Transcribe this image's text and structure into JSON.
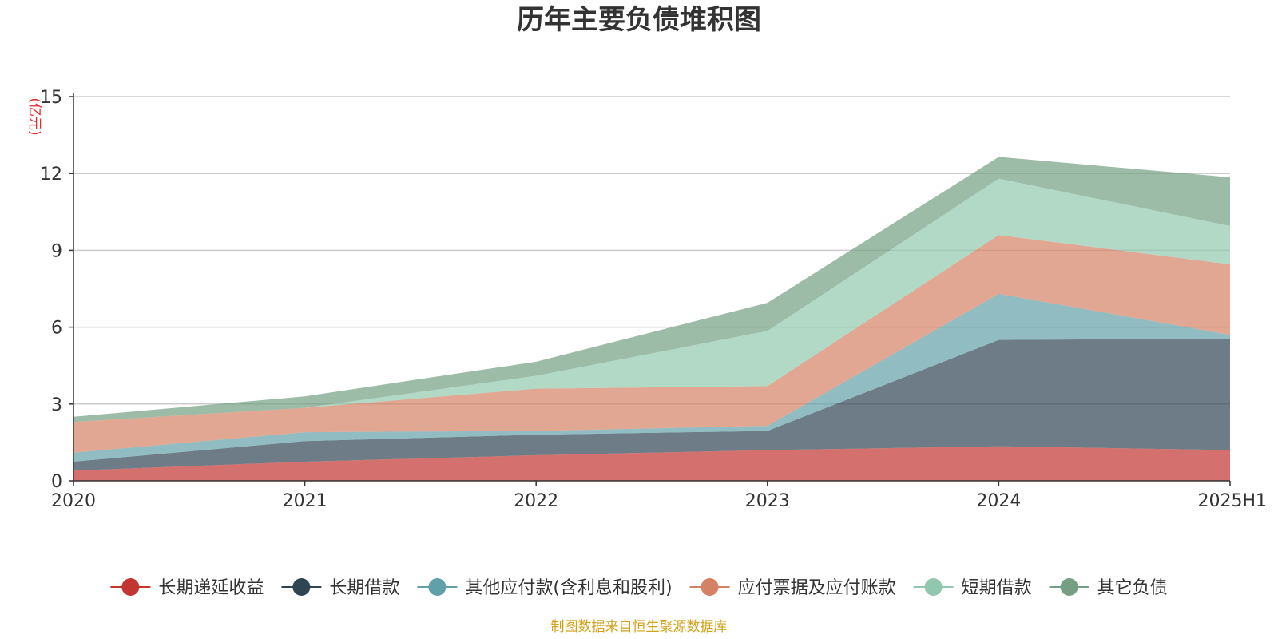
{
  "chart_data": {
    "type": "area",
    "stacked": true,
    "title": "历年主要负债堆积图",
    "unit_label": "(亿元)",
    "categories": [
      "2020",
      "2021",
      "2022",
      "2023",
      "2024",
      "2025H1"
    ],
    "ylim": [
      0,
      15
    ],
    "yticks": [
      "0",
      "3",
      "6",
      "9",
      "12",
      "15"
    ],
    "grid": true,
    "legend_position": "bottom",
    "series": [
      {
        "name": "长期递延收益",
        "values": [
          0.4,
          0.75,
          1.0,
          1.2,
          1.35,
          1.2
        ],
        "color": "#c23531"
      },
      {
        "name": "长期借款",
        "values": [
          0.35,
          0.8,
          0.8,
          0.75,
          4.15,
          4.35
        ],
        "color": "#2f4554"
      },
      {
        "name": "其他应付款(含利息和股利)",
        "values": [
          0.35,
          0.35,
          0.15,
          0.2,
          1.8,
          0.15
        ],
        "color": "#61a0a8"
      },
      {
        "name": "应付票据及应付账款",
        "values": [
          1.2,
          0.95,
          1.65,
          1.55,
          2.3,
          2.75
        ],
        "color": "#d48265"
      },
      {
        "name": "短期借款",
        "values": [
          0.0,
          0.0,
          0.5,
          2.15,
          2.2,
          1.5
        ],
        "color": "#91c7ae"
      },
      {
        "name": "其它负债",
        "values": [
          0.2,
          0.45,
          0.55,
          1.1,
          0.85,
          1.9
        ],
        "color": "#749f83"
      }
    ],
    "source": "制图数据来自恒生聚源数据库"
  }
}
